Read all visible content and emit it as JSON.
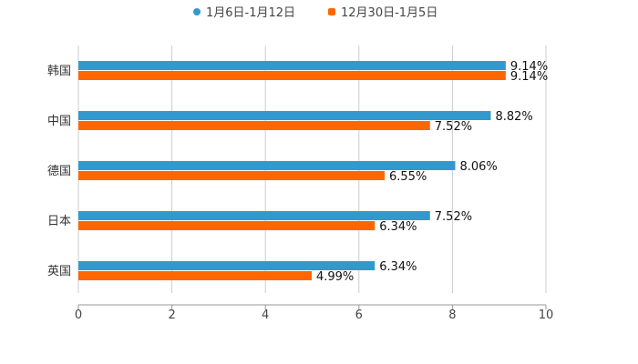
{
  "chart_data": {
    "type": "bar",
    "orientation": "horizontal",
    "categories": [
      "韩国",
      "中国",
      "德国",
      "日本",
      "英国"
    ],
    "series": [
      {
        "name": "1月6日-1月12日",
        "color": "#3399cc",
        "values": [
          9.14,
          8.82,
          8.06,
          7.52,
          6.34
        ],
        "labels": [
          "9.14%",
          "8.82%",
          "8.06%",
          "7.52%",
          "6.34%"
        ]
      },
      {
        "name": "12月30日-1月5日",
        "color": "#ff6600",
        "values": [
          9.14,
          7.52,
          6.55,
          6.34,
          4.99
        ],
        "labels": [
          "9.14%",
          "7.52%",
          "6.55%",
          "6.34%",
          "4.99%"
        ]
      }
    ],
    "xlim": [
      0,
      10
    ],
    "xticks": [
      "0",
      "2",
      "4",
      "6",
      "8",
      "10"
    ],
    "grid": true,
    "legend": "top-center"
  }
}
